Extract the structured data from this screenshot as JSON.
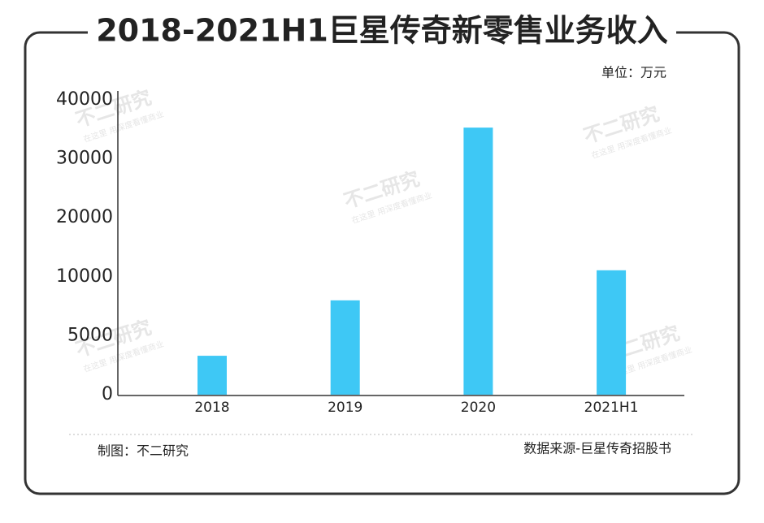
{
  "chart_data": {
    "type": "bar",
    "title": "2018-2021H1巨星传奇新零售业务收入",
    "unit": "单位：万元",
    "categories": [
      "2018",
      "2019",
      "2020",
      "2021H1"
    ],
    "values": [
      3300,
      8000,
      35300,
      11100
    ],
    "color": "#3ec8f5",
    "ylim": [
      0,
      40000
    ],
    "yticks": [
      0,
      5000,
      10000,
      20000,
      30000,
      40000
    ],
    "grid": false,
    "credit": "制图：不二研究",
    "source": "数据来源-巨星传奇招股书",
    "watermark": "不二研究",
    "watermark_sub": "在这里 用深度看懂商业"
  }
}
